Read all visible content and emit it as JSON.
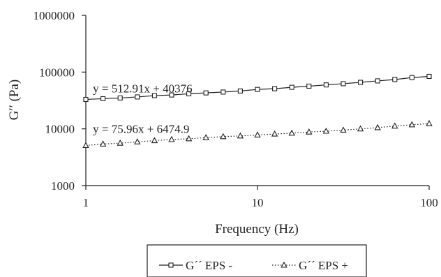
{
  "chart_data": {
    "type": "line",
    "xscale": "log",
    "yscale": "log",
    "xlim": [
      1,
      100
    ],
    "ylim": [
      1000,
      1000000
    ],
    "xticks": [
      1,
      10,
      100
    ],
    "xtick_labels": [
      "1",
      "10",
      "100"
    ],
    "yticks": [
      1000,
      10000,
      100000,
      1000000
    ],
    "ytick_labels": [
      "1000",
      "10000",
      "100000",
      "1000000"
    ],
    "xlabel": "Frequency (Hz)",
    "ylabel": "G′′ (Pa)",
    "grid": false,
    "legend_position": "bottom",
    "x": [
      1,
      1.259,
      1.585,
      1.995,
      2.512,
      3.162,
      3.981,
      5.012,
      6.31,
      7.943,
      10,
      12.59,
      15.85,
      19.95,
      25.12,
      31.62,
      39.81,
      50.12,
      63.1,
      79.43,
      100
    ],
    "series": [
      {
        "name": "G´´ EPS -",
        "marker": "square",
        "line_style": "solid",
        "values": [
          33000,
          34000,
          35000,
          36500,
          38500,
          39500,
          41500,
          43000,
          44500,
          46500,
          49500,
          51000,
          54000,
          56500,
          59500,
          62500,
          66000,
          70000,
          74000,
          80000,
          84000
        ]
      },
      {
        "name": "G´´ EPS +",
        "marker": "triangle",
        "line_style": "dotted",
        "values": [
          5100,
          5400,
          5600,
          5900,
          6200,
          6500,
          6700,
          7000,
          7300,
          7500,
          7800,
          8100,
          8400,
          8800,
          9100,
          9500,
          10000,
          10500,
          11200,
          11800,
          12400
        ]
      }
    ],
    "annotations": [
      {
        "text": "y = 512.91x + 40376",
        "x": 1.1,
        "y": 44000
      },
      {
        "text": "y = 75.96x + 6474.9",
        "x": 1.1,
        "y": 8500
      }
    ],
    "colors": {
      "line": "#231f20",
      "background": "#ffffff"
    }
  }
}
